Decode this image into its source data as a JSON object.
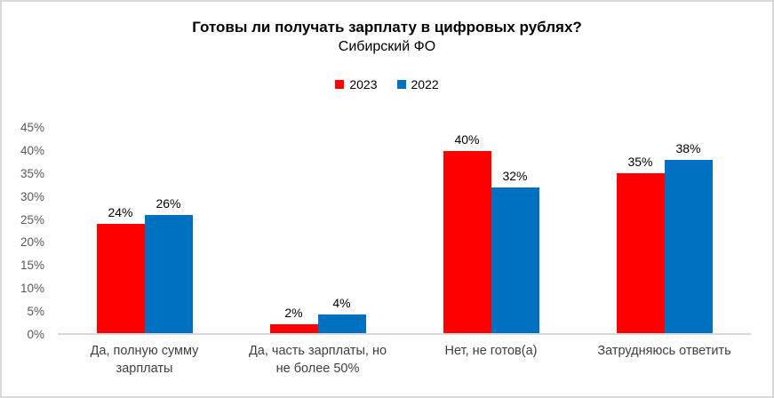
{
  "header": {
    "title": "Готовы ли получать зарплату в цифровых рублях?",
    "subtitle": "Сибирский ФО"
  },
  "legend": {
    "position": "top",
    "items": [
      {
        "label": "2023",
        "color": "#ff0000"
      },
      {
        "label": "2022",
        "color": "#0070c0"
      }
    ]
  },
  "chart_data": {
    "type": "bar",
    "title": "Готовы ли получать зарплату в цифровых рублях?",
    "subtitle": "Сибирский ФО",
    "categories": [
      "Да, полную сумму зарплаты",
      "Да, часть зарплаты, но не более 50%",
      "Нет, не готов(а)",
      "Затрудняюсь ответить"
    ],
    "category_display_lines": [
      [
        "Да, полную сумму",
        "зарплаты"
      ],
      [
        "Да, часть зарплаты, но",
        "не более 50%"
      ],
      [
        "Нет, не готов(а)"
      ],
      [
        "Затрудняюсь ответить"
      ]
    ],
    "series": [
      {
        "name": "2023",
        "color": "#ff0000",
        "values": [
          24,
          2,
          40,
          35
        ]
      },
      {
        "name": "2022",
        "color": "#0070c0",
        "values": [
          26,
          4,
          32,
          38
        ]
      }
    ],
    "data_labels": [
      [
        "24%",
        "2%",
        "40%",
        "35%"
      ],
      [
        "26%",
        "4%",
        "32%",
        "38%"
      ]
    ],
    "ylim": [
      0,
      45
    ],
    "ytick_step": 5,
    "ytick_labels": [
      "0%",
      "5%",
      "10%",
      "15%",
      "20%",
      "25%",
      "30%",
      "35%",
      "40%",
      "45%"
    ],
    "grid": false,
    "legend_position": "top"
  },
  "colors": {
    "background": "#ffffff",
    "border": "#d9d9d9",
    "axis_line": "#d9d9d9",
    "ytick_text": "#595959",
    "category_text": "#404040",
    "title_text": "#000000",
    "series_2023": "#ff0000",
    "series_2022": "#0070c0"
  }
}
